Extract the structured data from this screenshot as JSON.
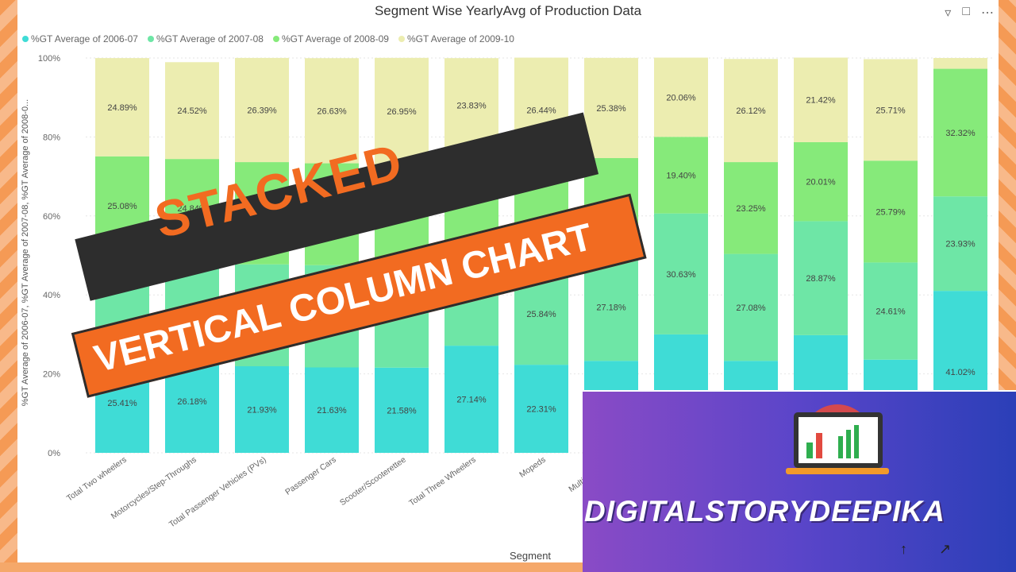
{
  "window": {
    "title": "Segment Wise YearlyAvg of Production Data"
  },
  "toolbar": {
    "filter_icon": "filter-icon",
    "focus_icon": "focus-mode-icon",
    "more_icon": "more-options-icon"
  },
  "banner": {
    "line1": "STACKED",
    "line2": "VERTICAL COLUMN CHART"
  },
  "brand": {
    "name": "DIGITALSTORYDEEPIKA",
    "icon": "laptop-chart-icon"
  },
  "chart_data": {
    "type": "bar",
    "stacked": true,
    "title": "Segment Wise YearlyAvg of Production Data",
    "xlabel": "Segment",
    "ylabel": "%GT Average of 2006-07, %GT Average of 2007-08, %GT Average of 2008-0...",
    "ylim": [
      0,
      100
    ],
    "yticks": [
      "0%",
      "20%",
      "40%",
      "60%",
      "80%",
      "100%"
    ],
    "legend_position": "top-left",
    "categories": [
      "Total Two wheelers",
      "Motorcycles/Step-Throughs",
      "Total Passenger Vehicles (PVs)",
      "Passenger Cars",
      "Scooter/Scooterettee",
      "Total Three Wheelers",
      "Mopeds",
      "Multi-Utility V...",
      "",
      "",
      "",
      "",
      ""
    ],
    "series": [
      {
        "name": "%GT Average of 2006-07",
        "color": "#3fdcd6",
        "values": [
          25.41,
          26.18,
          21.93,
          21.63,
          21.58,
          27.14,
          22.31,
          23.3,
          30.0,
          23.3,
          29.8,
          23.6,
          41.02
        ],
        "labels": [
          "25.41%",
          "26.18%",
          "21.93%",
          "21.63%",
          "21.58%",
          "27.14%",
          "22.31%",
          "",
          "",
          "",
          "",
          "",
          "41.02%"
        ]
      },
      {
        "name": "%GT Average of 2007-08",
        "color": "#6ee6a6",
        "values": [
          24.6,
          23.4,
          25.8,
          25.9,
          25.6,
          23.9,
          25.84,
          27.18,
          30.63,
          27.08,
          28.87,
          24.61,
          23.93
        ],
        "labels": [
          "",
          "",
          "",
          "",
          "",
          "",
          "25.84%",
          "27.18%",
          "30.63%",
          "27.08%",
          "28.87%",
          "24.61%",
          "23.93%"
        ]
      },
      {
        "name": "%GT Average of 2008-09",
        "color": "#86ea7a",
        "values": [
          25.08,
          24.84,
          25.9,
          25.8,
          25.9,
          25.1,
          25.5,
          24.17,
          19.4,
          23.25,
          20.01,
          25.79,
          32.32
        ],
        "labels": [
          "25.08%",
          "24.84%",
          "25.90%",
          "",
          "",
          "",
          "",
          "24.17%",
          "19.40%",
          "23.25%",
          "20.01%",
          "25.79%",
          "32.32%"
        ]
      },
      {
        "name": "%GT Average of 2009-10",
        "color": "#ecedb0",
        "values": [
          24.89,
          24.52,
          26.39,
          26.63,
          26.95,
          23.83,
          26.44,
          25.38,
          20.06,
          26.12,
          21.42,
          25.71,
          2.73
        ],
        "labels": [
          "24.89%",
          "24.52%",
          "26.39%",
          "26.63%",
          "26.95%",
          "23.83%",
          "26.44%",
          "25.38%",
          "20.06%",
          "26.12%",
          "21.42%",
          "25.71%",
          ""
        ]
      }
    ]
  }
}
